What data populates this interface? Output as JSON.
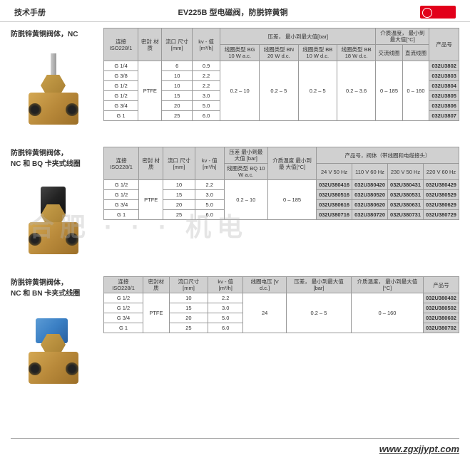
{
  "header": {
    "left": "技术手册",
    "center": "EV225B 型电磁阀，防脱锌黄铜"
  },
  "watermark": "合肥 · · · 机电",
  "footer_url": "www.zgxjjypt.com",
  "section1": {
    "title": "防脱锌黄铜阀体，NC",
    "headers": {
      "conn": "连接\nISO228/1",
      "seal": "密封\n材质",
      "port": "流口\n尺寸\n[mm]",
      "kv": "kv - 值\n[m³/h]",
      "pdiff_group": "压差，\n最小到最大值[bar]",
      "bg10": "线圈类型\nBG 10 W\na.c.",
      "bn20": "线圈类型\nBN 20 W\nd.c.",
      "bb10": "线圈类型\nBB 10 W\nd.c.",
      "bb18": "线圈类型\nBB 18 W\nd.c.",
      "temp_group": "介质温度，\n最小到最大值[°C]",
      "ac": "交流线圈",
      "dc": "直流线圈",
      "prod": "产品号"
    },
    "seal": "PTFE",
    "pdiff1": "0.2 – 10",
    "pdiff2": "0.2 – 5",
    "pdiff3": "0.2 – 5",
    "pdiff4": "0.2 – 3.6",
    "temp_ac": "0 – 185",
    "temp_dc": "0 – 160",
    "rows": [
      {
        "conn": "G 1/4",
        "port": "6",
        "kv": "0.9",
        "prod": "032U3802"
      },
      {
        "conn": "G 3/8",
        "port": "10",
        "kv": "2.2",
        "prod": "032U3803"
      },
      {
        "conn": "G 1/2",
        "port": "10",
        "kv": "2.2",
        "prod": "032U3804"
      },
      {
        "conn": "G 1/2",
        "port": "15",
        "kv": "3.0",
        "prod": "032U3805"
      },
      {
        "conn": "G 3/4",
        "port": "20",
        "kv": "5.0",
        "prod": "032U3806"
      },
      {
        "conn": "G 1",
        "port": "25",
        "kv": "6.0",
        "prod": "032U3807"
      }
    ]
  },
  "section2": {
    "title": "防脱锌黄铜阀体，\nNC 和 BQ 卡夹式线圈",
    "headers": {
      "conn": "连接\nISO228/1",
      "seal": "密封\n材质",
      "port": "流口\n尺寸\n[mm]",
      "kv": "kv - 值\n[m³/h]",
      "pdiff_group": "压差\n最小到最大值\n[bar]",
      "bq10": "线圈类型 BQ\n10 W a.c.",
      "temp": "介质温度\n最小到最\n大值[°C]",
      "prod_group": "产品号，阀体（带线圈和电缆接头）",
      "v24": "24 V 50 Hz",
      "v110": "110 V 60 Hz",
      "v230": "230 V 50 Hz",
      "v220": "220 V 60 Hz"
    },
    "seal": "PTFE",
    "pdiff": "0.2 – 10",
    "temp": "0 – 185",
    "rows": [
      {
        "conn": "G 1/2",
        "port": "10",
        "kv": "2.2",
        "p1": "032U380416",
        "p2": "032U380420",
        "p3": "032U380431",
        "p4": "032U380429"
      },
      {
        "conn": "G 1/2",
        "port": "15",
        "kv": "3.0",
        "p1": "032U380516",
        "p2": "032U380520",
        "p3": "032U380531",
        "p4": "032U380529"
      },
      {
        "conn": "G 3/4",
        "port": "20",
        "kv": "5.0",
        "p1": "032U380616",
        "p2": "032U380620",
        "p3": "032U380631",
        "p4": "032U380629"
      },
      {
        "conn": "G 1",
        "port": "25",
        "kv": "6.0",
        "p1": "032U380716",
        "p2": "032U380720",
        "p3": "032U380731",
        "p4": "032U380729"
      }
    ]
  },
  "section3": {
    "title": "防脱锌黄铜阀体，\nNC 和 BN 卡夹式线圈",
    "headers": {
      "conn": "连接\nISO228/1",
      "seal": "密封材质",
      "port": "流口尺寸\n[mm]",
      "kv": "kv - 值\n[m³/h]",
      "volt": "线圈电压\n[V d.c.]",
      "pdiff": "压差，\n最小到最大值 [bar]",
      "temp": "介质温度，\n最小到最大值[°C]",
      "prod": "产品号"
    },
    "seal": "PTFE",
    "volt": "24",
    "pdiff": "0.2 – 5",
    "temp": "0 – 160",
    "rows": [
      {
        "conn": "G 1/2",
        "port": "10",
        "kv": "2.2",
        "prod": "032U380402"
      },
      {
        "conn": "G 1/2",
        "port": "15",
        "kv": "3.0",
        "prod": "032U380502"
      },
      {
        "conn": "G 3/4",
        "port": "20",
        "kv": "5.0",
        "prod": "032U380602"
      },
      {
        "conn": "G 1",
        "port": "25",
        "kv": "6.0",
        "prod": "032U380702"
      }
    ]
  }
}
